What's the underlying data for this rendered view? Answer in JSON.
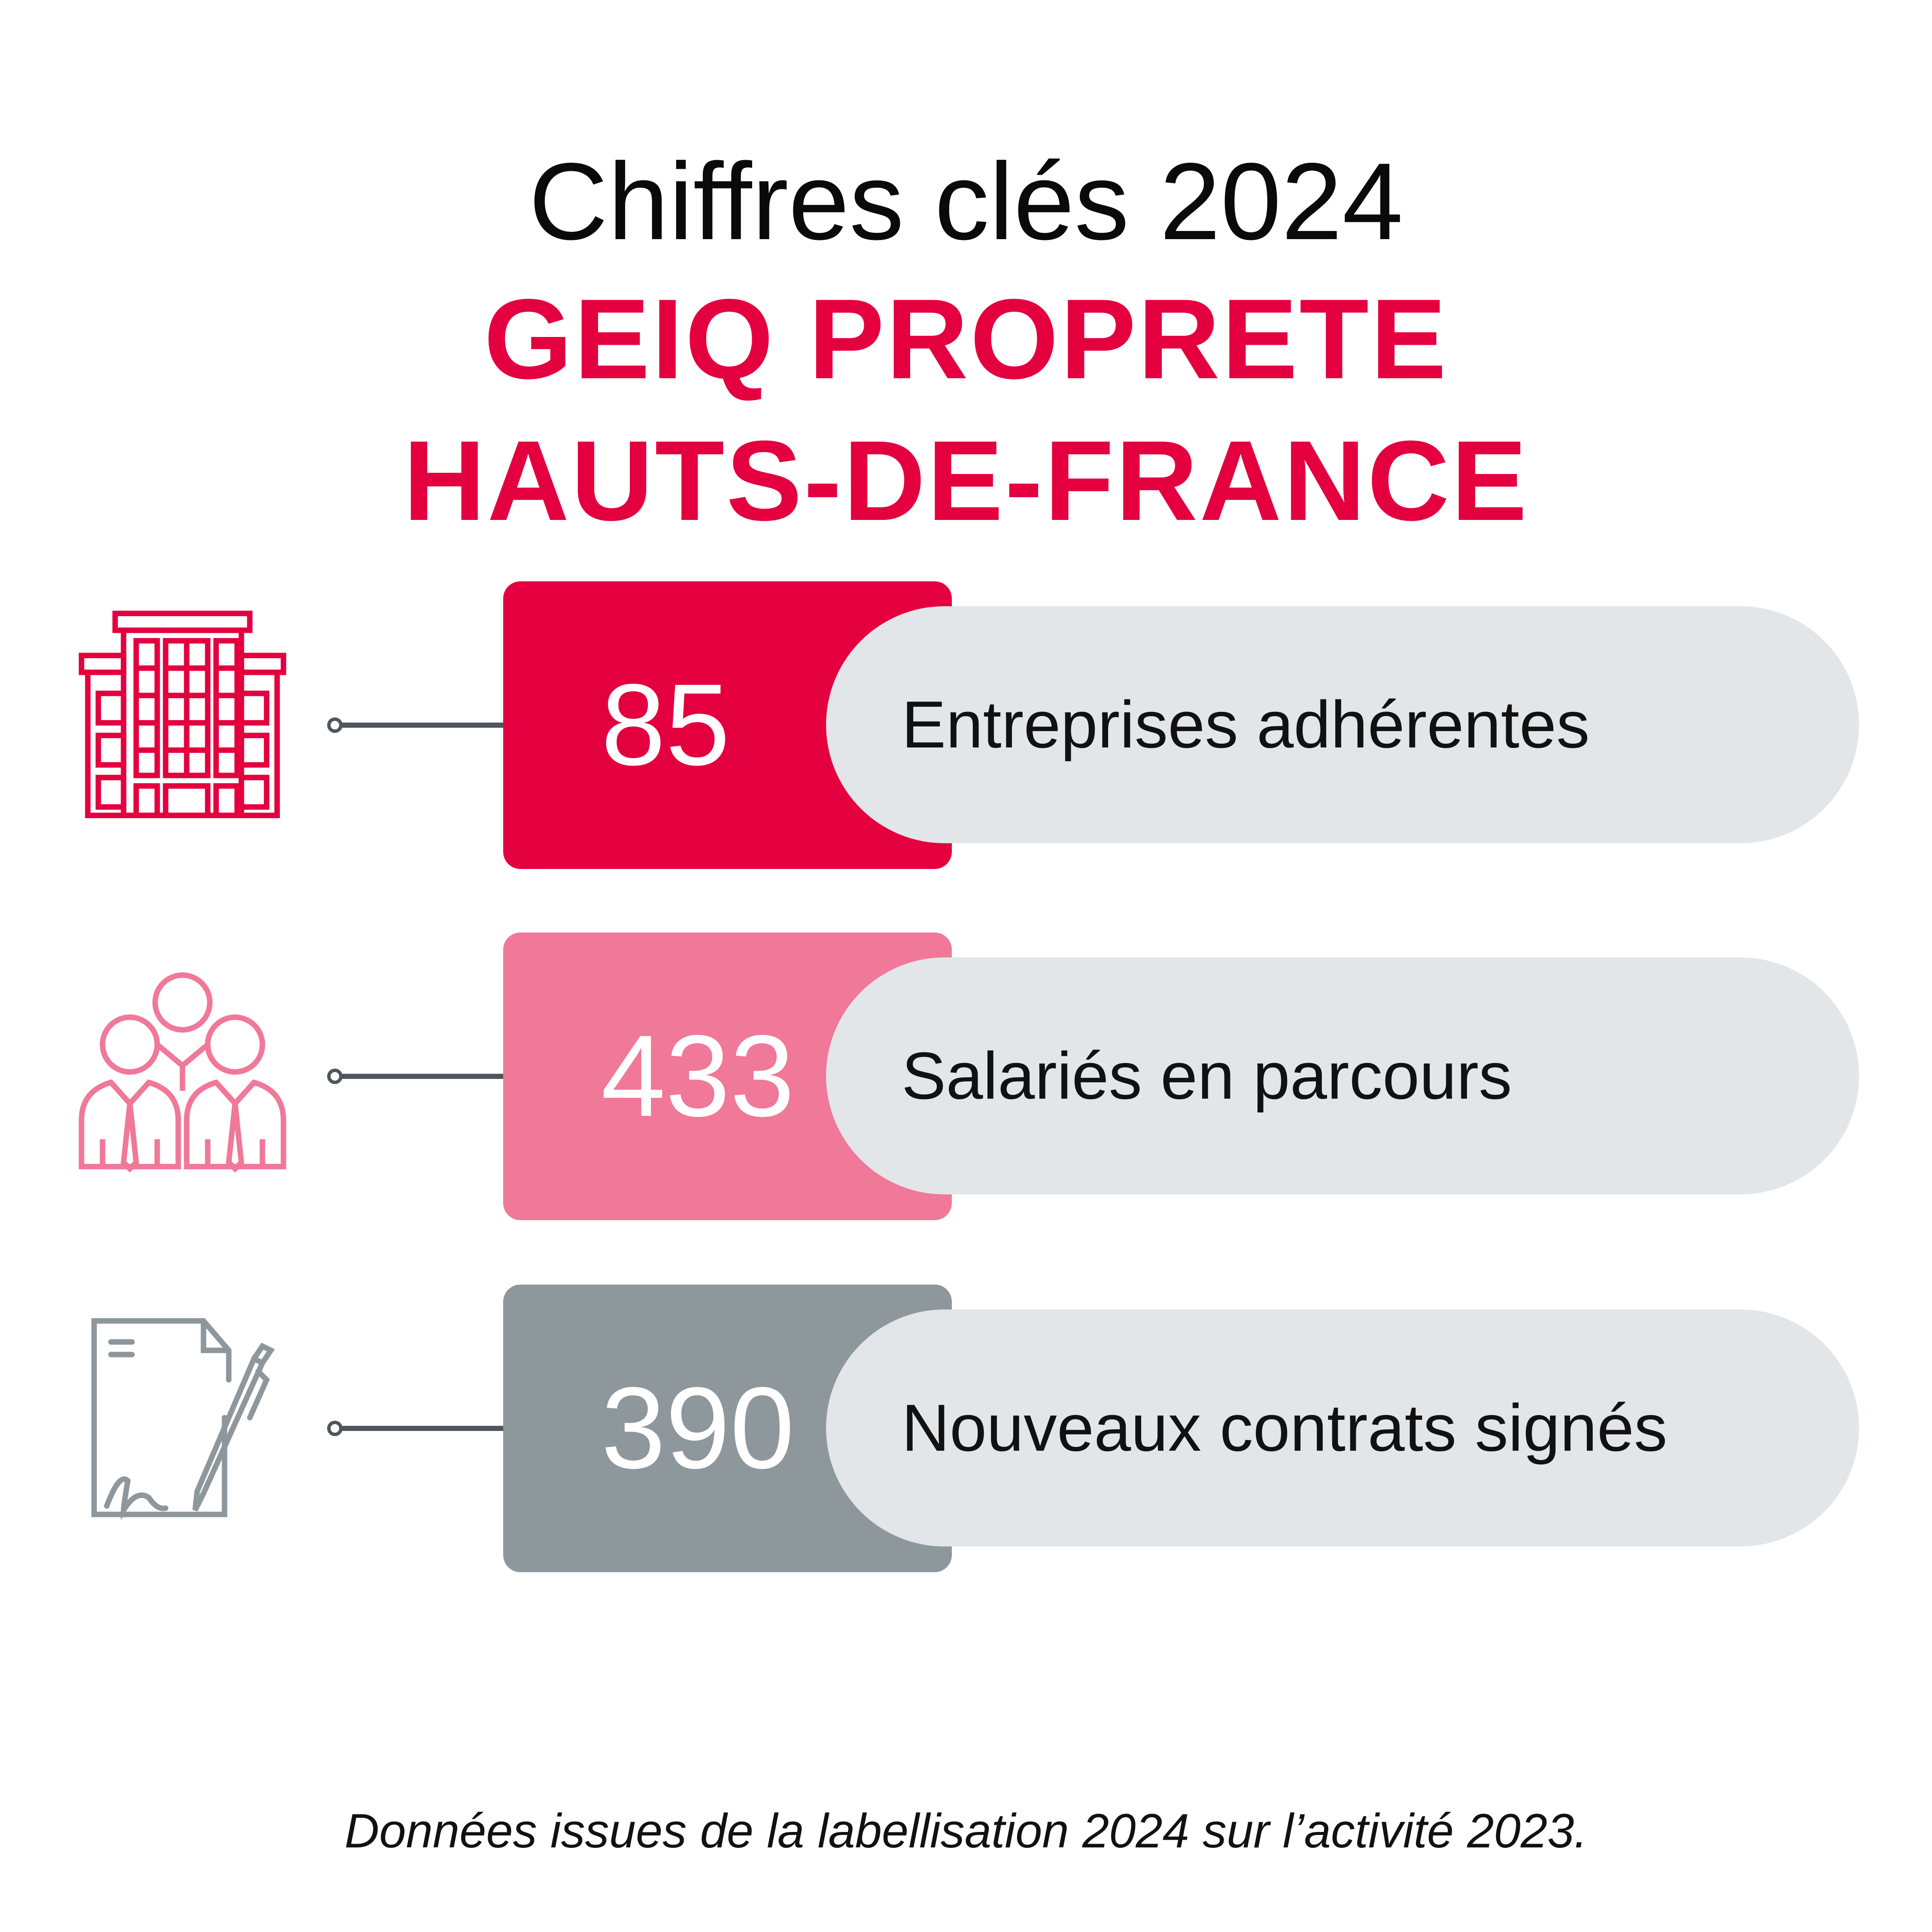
{
  "header": {
    "title": "Chiffres clés 2024",
    "org_line1": "GEIQ PROPRETE",
    "org_line2": "HAUTS-DE-FRANCE"
  },
  "stats": [
    {
      "value": "85",
      "label": "Entreprises adhérentes",
      "icon": "building-icon",
      "color": "#e4003f"
    },
    {
      "value": "433",
      "label": "Salariés en parcours",
      "icon": "team-icon",
      "color": "#f07898"
    },
    {
      "value": "390",
      "label": "Nouveaux contrats signés",
      "icon": "signed-contract-icon",
      "color": "#8e979c"
    }
  ],
  "colors": {
    "accent": "#e4003f",
    "pill": "#e3e6e9",
    "connector": "#4f565d"
  },
  "footer": {
    "note": "Données issues de la labellisation 2024 sur l’activité 2023."
  }
}
